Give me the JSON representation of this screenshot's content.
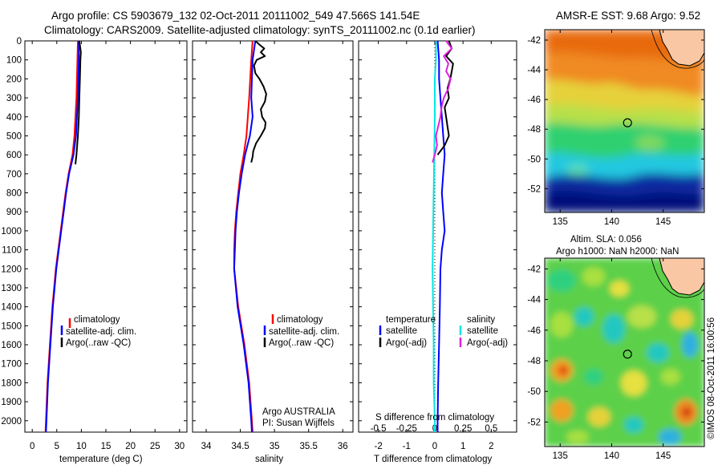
{
  "header": {
    "line1": "Argo profile: CS 5903679_132 02-Oct-2011 20111002_549 47.566S 141.54E",
    "line2": "Climatology: CARS2009. Satellite-adjusted climatology: synTS_20111002.nc (0.1d earlier)"
  },
  "colors": {
    "climatology": "#ff0000",
    "satellite": "#0000ff",
    "argo": "#000000",
    "salinity_sat": "#00e5e5",
    "salinity_argo": "#e020e0"
  },
  "depth_axis": {
    "ticks": [
      "0",
      "100",
      "200",
      "300",
      "400",
      "500",
      "600",
      "700",
      "800",
      "900",
      "1000",
      "1100",
      "1200",
      "1300",
      "1400",
      "1500",
      "1600",
      "1700",
      "1800",
      "1900",
      "2000"
    ],
    "max": 2060
  },
  "chart_data": [
    {
      "type": "line",
      "id": "temperature",
      "xlabel": "temperature (deg C)",
      "xticks": [
        "0",
        "5",
        "10",
        "15",
        "20",
        "25",
        "30"
      ],
      "xlim": [
        -1.5,
        31.5
      ],
      "ylim": [
        0,
        2060
      ],
      "legend": [
        "climatology",
        "satellite-adj. clim.",
        "Argo(..raw -QC)"
      ],
      "series": [
        {
          "name": "climatology",
          "color": "#ff0000",
          "d": [
            0,
            100,
            300,
            500,
            600,
            700,
            800,
            900,
            1000,
            1100,
            1200,
            1400,
            1600,
            1800,
            2000,
            2060
          ],
          "v": [
            9.3,
            9.2,
            9.0,
            8.6,
            8.2,
            7.4,
            6.8,
            6.3,
            5.8,
            5.3,
            4.8,
            4.1,
            3.6,
            3.1,
            2.8,
            2.7
          ]
        },
        {
          "name": "satellite-adj. clim.",
          "color": "#0000ff",
          "d": [
            0,
            100,
            300,
            500,
            600,
            700,
            800,
            900,
            1000,
            1100,
            1200,
            1400,
            1600,
            1800,
            2000,
            2060
          ],
          "v": [
            9.5,
            9.5,
            9.3,
            8.9,
            8.4,
            7.5,
            6.9,
            6.4,
            5.9,
            5.4,
            4.9,
            4.2,
            3.7,
            3.2,
            2.9,
            2.8
          ]
        },
        {
          "name": "Argo(..raw -QC)",
          "color": "#000000",
          "d": [
            0,
            60,
            100,
            200,
            300,
            400,
            500,
            600,
            650
          ],
          "v": [
            9.6,
            9.9,
            9.8,
            9.7,
            9.6,
            9.5,
            9.3,
            9.0,
            8.8
          ]
        }
      ]
    },
    {
      "type": "line",
      "id": "salinity",
      "xlabel": "salinity",
      "xticks": [
        "34",
        "34.5",
        "35",
        "35.5",
        "36"
      ],
      "xlim": [
        33.8,
        36.15
      ],
      "ylim": [
        0,
        2060
      ],
      "legend": [
        "climatology",
        "satellite-adj. clim.",
        "Argo(..raw -QC)"
      ],
      "annotation": [
        "Argo AUSTRALIA",
        "PI: Susan Wijffels"
      ],
      "series": [
        {
          "name": "climatology",
          "color": "#ff0000",
          "d": [
            0,
            100,
            300,
            500,
            600,
            700,
            800,
            900,
            1000,
            1100,
            1200,
            1400,
            1600,
            1800,
            2000,
            2060
          ],
          "v": [
            34.68,
            34.66,
            34.63,
            34.59,
            34.55,
            34.5,
            34.47,
            34.44,
            34.42,
            34.41,
            34.41,
            34.47,
            34.56,
            34.63,
            34.67,
            34.68
          ]
        },
        {
          "name": "satellite-adj. clim.",
          "color": "#0000ff",
          "d": [
            0,
            100,
            200,
            300,
            400,
            500,
            600,
            700,
            800,
            900,
            1000,
            1100,
            1200,
            1400,
            1600,
            1800,
            2000,
            2060
          ],
          "v": [
            34.72,
            34.68,
            34.67,
            34.66,
            34.68,
            34.64,
            34.57,
            34.52,
            34.48,
            34.45,
            34.43,
            34.42,
            34.41,
            34.46,
            34.55,
            34.62,
            34.66,
            34.67
          ]
        },
        {
          "name": "Argo(..raw -QC)",
          "color": "#000000",
          "d": [
            0,
            20,
            40,
            60,
            80,
            100,
            130,
            170,
            200,
            240,
            280,
            320,
            360,
            400,
            430,
            460,
            500,
            540,
            580,
            610,
            640
          ],
          "v": [
            34.72,
            34.78,
            34.85,
            34.8,
            34.86,
            34.74,
            34.7,
            34.72,
            34.78,
            34.84,
            34.88,
            34.86,
            34.8,
            34.82,
            34.87,
            34.86,
            34.8,
            34.73,
            34.69,
            34.68,
            34.66
          ]
        }
      ]
    },
    {
      "type": "line",
      "id": "difference",
      "xlabel": "T difference from climatology",
      "top_label": "S difference from climatology",
      "xticks": [
        "-2",
        "-1",
        "0",
        "1",
        "2"
      ],
      "xlim": [
        -2.7,
        2.9
      ],
      "top_xticks": [
        "-0.5",
        "-0.25",
        "0",
        "0.25",
        "0.5"
      ],
      "top_xlim": [
        -0.675,
        0.725
      ],
      "ylim": [
        0,
        2060
      ],
      "legend_left": {
        "title": "temperature",
        "items": [
          "satellite",
          "Argo(-adj)"
        ]
      },
      "legend_right": {
        "title": "salinity",
        "items": [
          "satellite",
          "Argo(-adj)"
        ]
      },
      "series": [
        {
          "name": "T satellite",
          "color": "#0000ff",
          "d": [
            0,
            100,
            200,
            300,
            400,
            500,
            600,
            700,
            800,
            900,
            1000,
            1100,
            1200,
            1400,
            1600,
            1800,
            2000,
            2060
          ],
          "v": [
            0.1,
            0.15,
            0.15,
            0.2,
            0.25,
            0.3,
            0.35,
            0.3,
            0.25,
            0.3,
            0.35,
            0.25,
            0.2,
            0.18,
            0.15,
            0.12,
            0.1,
            0.1
          ]
        },
        {
          "name": "T Argo(-adj)",
          "color": "#000000",
          "d": [
            0,
            40,
            80,
            120,
            160,
            200,
            250,
            300,
            350,
            400,
            450,
            500,
            550,
            600
          ],
          "v": [
            0.5,
            0.6,
            0.4,
            0.65,
            0.6,
            0.55,
            0.45,
            0.5,
            0.35,
            0.4,
            0.45,
            0.5,
            0.35,
            0.1
          ]
        },
        {
          "name": "S satellite",
          "color": "#00e5e5",
          "d": [
            0,
            100,
            200,
            300,
            400,
            600,
            800,
            1000,
            1200,
            1400,
            1600,
            1800,
            2000,
            2060
          ],
          "v": [
            0.01,
            0.01,
            0.0,
            0.0,
            0.0,
            -0.005,
            -0.01,
            -0.015,
            -0.02,
            -0.015,
            -0.01,
            -0.01,
            0.0,
            0.0
          ],
          "top": true
        },
        {
          "name": "S Argo(-adj)",
          "color": "#e020e0",
          "d": [
            0,
            40,
            80,
            120,
            160,
            200,
            250,
            300,
            350,
            400,
            450,
            500,
            550,
            600,
            640
          ],
          "v": [
            0.1,
            0.15,
            0.08,
            0.12,
            0.1,
            0.14,
            0.12,
            0.08,
            0.06,
            0.05,
            0.03,
            0.01,
            0.02,
            0.0,
            -0.02
          ],
          "top": true
        }
      ]
    }
  ],
  "map_top": {
    "title": "AMSR-E SST: 9.68 Argo: 9.52",
    "lat_ticks": [
      "-42",
      "-44",
      "-46",
      "-48",
      "-50",
      "-52"
    ],
    "lon_ticks": [
      "135",
      "140",
      "145"
    ],
    "lon_range": [
      133.5,
      149
    ],
    "lat_range": [
      -41.3,
      -53.6
    ],
    "float": {
      "lon": 141.54,
      "lat": -47.566
    }
  },
  "map_bottom": {
    "title1": "Altim. SLA: 0.056",
    "title2": "Argo h1000: NaN h2000: NaN",
    "lat_ticks": [
      "-42",
      "-44",
      "-46",
      "-48",
      "-50",
      "-52"
    ],
    "lon_ticks": [
      "135",
      "140",
      "145"
    ],
    "lon_range": [
      133.5,
      149
    ],
    "lat_range": [
      -41.3,
      -53.6
    ],
    "float": {
      "lon": 141.54,
      "lat": -47.566
    }
  },
  "credit": "©IMOS 08-Oct-2011 16:00:56"
}
